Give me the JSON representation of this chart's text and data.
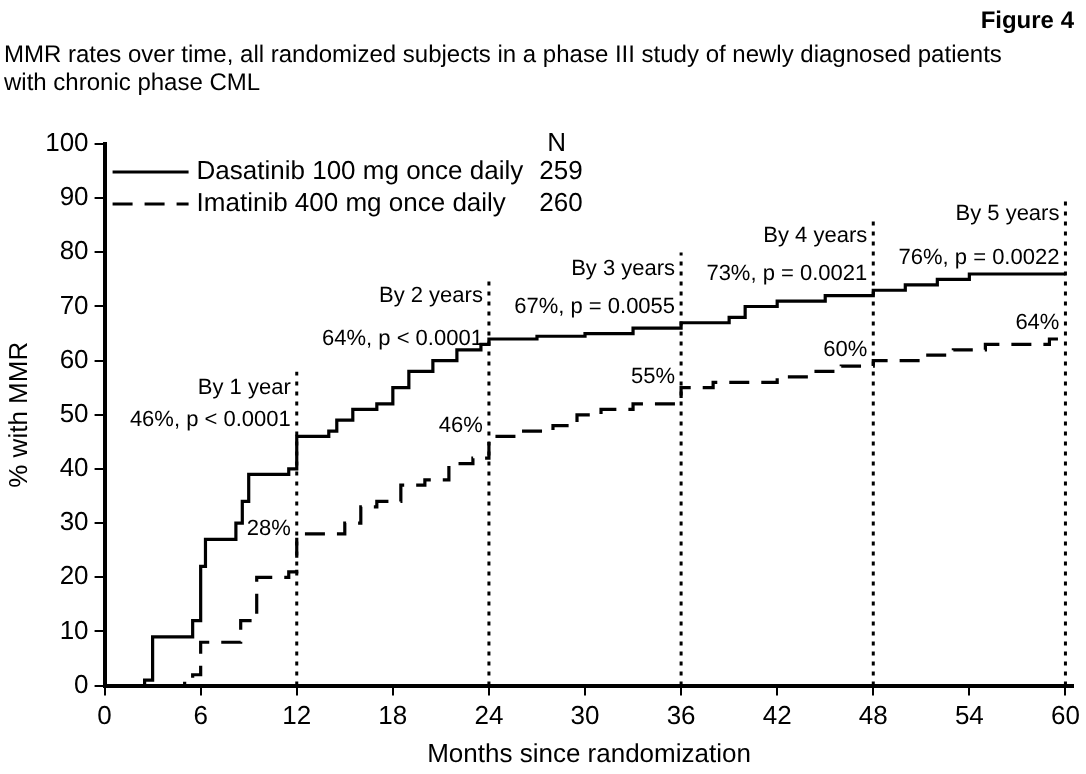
{
  "chart_data": {
    "type": "step",
    "title": "MMR rates over time, all randomized subjects in a phase III study of newly diagnosed patients with chronic phase CML",
    "subtitle": "Figure 4",
    "xlabel": "Months since randomization",
    "ylabel": "% with MMR",
    "legend": "top left",
    "legend_title": "N",
    "grid": false,
    "marker": "none",
    "xlim": [
      0,
      60.5
    ],
    "xticks": [
      0,
      6,
      12,
      18,
      24,
      30,
      36,
      42,
      48,
      54,
      60
    ],
    "ylim": [
      0,
      100
    ],
    "yticks": [
      0,
      10,
      20,
      30,
      40,
      50,
      60,
      70,
      80,
      90,
      100
    ],
    "series": [
      {
        "name": "Dasatinib 100 mg once daily",
        "color": "#000000",
        "line_style": "solid",
        "x": [
          0,
          2.5,
          3,
          5.5,
          6,
          6.3,
          8.2,
          8.6,
          9,
          11.5,
          12,
          14,
          14.5,
          15.5,
          17,
          18,
          19,
          20.5,
          22,
          23.5,
          24,
          27,
          30,
          33,
          36,
          39,
          40,
          42,
          45,
          48,
          50,
          52,
          54,
          60
        ],
        "values": [
          0,
          1,
          9,
          12,
          22,
          27,
          30,
          34,
          39,
          40,
          46,
          47,
          49,
          51,
          52,
          55,
          58,
          60,
          62,
          63,
          64,
          64.5,
          65,
          66,
          67,
          68,
          70,
          71,
          72,
          73,
          74,
          75,
          76,
          76
        ]
      },
      {
        "name": "Imatinib 400 mg once daily",
        "color": "#000000",
        "line_style": "dashed",
        "x": [
          0,
          5,
          5.5,
          6,
          8,
          8.5,
          9.5,
          11.5,
          12,
          14,
          15,
          16,
          17,
          18.5,
          20,
          21.5,
          23,
          24,
          26,
          28,
          29.5,
          31,
          33,
          36,
          38,
          42,
          44,
          46,
          48,
          51,
          53,
          55,
          59,
          60
        ],
        "values": [
          0,
          1,
          2,
          8,
          8,
          12,
          20,
          21,
          28,
          28,
          30,
          33,
          34,
          37,
          38,
          41,
          42,
          46,
          47,
          48,
          50,
          51,
          52,
          55,
          56,
          57,
          58,
          59,
          60,
          61,
          62,
          63,
          64,
          64
        ]
      }
    ],
    "ref_lines": [
      {
        "axis": "x",
        "value": 12,
        "line_style": "dotted"
      },
      {
        "axis": "x",
        "value": 24,
        "line_style": "dotted"
      },
      {
        "axis": "x",
        "value": 36,
        "line_style": "dotted"
      },
      {
        "axis": "x",
        "value": 48,
        "line_style": "dotted"
      },
      {
        "axis": "x",
        "value": 60,
        "line_style": "dotted"
      }
    ],
    "annotations": [
      "259",
      "260",
      {
        "text": "By 1 year",
        "x": 12,
        "y": 55
      },
      {
        "text": "46%, p < 0.0001",
        "x": 12,
        "y": 49
      },
      {
        "text": "28%",
        "x": 12,
        "y": 29
      },
      {
        "text": "By 2 years",
        "x": 24,
        "y": 72
      },
      {
        "text": "64%, p < 0.0001",
        "x": 24,
        "y": 64
      },
      {
        "text": "46%",
        "x": 24,
        "y": 48
      },
      {
        "text": "By 3 years",
        "x": 36,
        "y": 77
      },
      {
        "text": "67%, p = 0.0055",
        "x": 36,
        "y": 70
      },
      {
        "text": "55%",
        "x": 36,
        "y": 57
      },
      {
        "text": "By 4 years",
        "x": 48,
        "y": 83
      },
      {
        "text": "73%, p = 0.0021",
        "x": 48,
        "y": 76
      },
      {
        "text": "60%",
        "x": 48,
        "y": 62
      },
      {
        "text": "By 5 years",
        "x": 60,
        "y": 87
      },
      {
        "text": "76%, p = 0.0022",
        "x": 60,
        "y": 79
      },
      {
        "text": "64%",
        "x": 60,
        "y": 67
      }
    ]
  }
}
